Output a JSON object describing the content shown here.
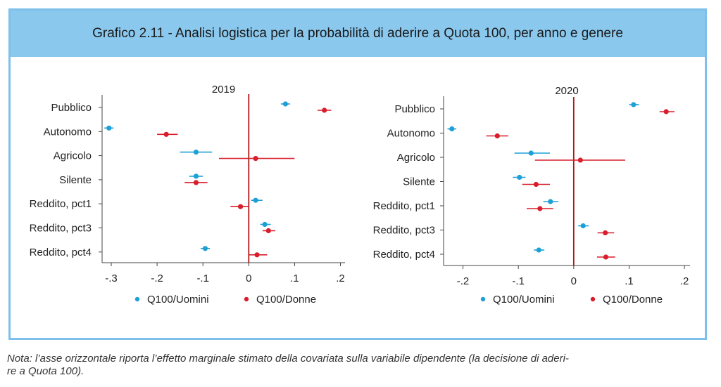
{
  "title": "Grafico 2.11 - Analisi logistica per la probabilità di aderire a Quota 100, per anno e genere",
  "note_line1": "Nota: l’asse orizzontale riporta l’effetto marginale stimato della covariata sulla variabile dipendente (la decisione di aderi-",
  "note_line2": "re a Quota 100).",
  "colors": {
    "men": "#1ca0d6",
    "women": "#d81e2c",
    "zero_line": "#b01818",
    "header": "#8ac8ee"
  },
  "chart_data": [
    {
      "type": "scatter",
      "title": "2019",
      "categories": [
        "Pubblico",
        "Autonomo",
        "Agricolo",
        "Silente",
        "Reddito, pct1",
        "Reddito, pct3",
        "Reddito, pct4"
      ],
      "xticks": [
        -0.3,
        -0.2,
        -0.1,
        0,
        0.1,
        0.2
      ],
      "xtick_labels": [
        "-.3",
        "-.2",
        "-.1",
        "0",
        ".1",
        ".2"
      ],
      "xlim": [
        -0.32,
        0.21
      ],
      "series": [
        {
          "name": "Q100/Uomini",
          "values": [
            0.08,
            -0.305,
            -0.115,
            -0.115,
            0.015,
            0.035,
            -0.095
          ],
          "ci_low": [
            0.07,
            -0.315,
            -0.15,
            -0.13,
            0.005,
            0.025,
            -0.105
          ],
          "ci_high": [
            0.09,
            -0.295,
            -0.08,
            -0.1,
            0.03,
            0.048,
            -0.085
          ]
        },
        {
          "name": "Q100/Donne",
          "values": [
            0.165,
            -0.18,
            0.015,
            -0.115,
            -0.018,
            0.043,
            0.018
          ],
          "ci_low": [
            0.15,
            -0.2,
            -0.065,
            -0.14,
            -0.04,
            0.03,
            0.0
          ],
          "ci_high": [
            0.18,
            -0.155,
            0.1,
            -0.09,
            0.0,
            0.058,
            0.04
          ]
        }
      ]
    },
    {
      "type": "scatter",
      "title": "2020",
      "categories": [
        "Pubblico",
        "Autonomo",
        "Agricolo",
        "Silente",
        "Reddito, pct1",
        "Reddito, pct3",
        "Reddito, pct4"
      ],
      "xticks": [
        -0.2,
        -0.1,
        0,
        0.1,
        0.2
      ],
      "xtick_labels": [
        "-.2",
        "-.1",
        "0",
        ".1",
        ".2"
      ],
      "xlim": [
        -0.235,
        0.21
      ],
      "series": [
        {
          "name": "Q100/Uomini",
          "values": [
            0.108,
            -0.22,
            -0.077,
            -0.098,
            -0.042,
            0.017,
            -0.063
          ],
          "ci_low": [
            0.1,
            -0.228,
            -0.107,
            -0.11,
            -0.055,
            0.008,
            -0.072
          ],
          "ci_high": [
            0.118,
            -0.212,
            -0.043,
            -0.087,
            -0.028,
            0.027,
            -0.053
          ]
        },
        {
          "name": "Q100/Donne",
          "values": [
            0.167,
            -0.138,
            0.012,
            -0.068,
            -0.061,
            0.057,
            0.058
          ],
          "ci_low": [
            0.155,
            -0.158,
            -0.07,
            -0.093,
            -0.085,
            0.043,
            0.042
          ],
          "ci_high": [
            0.182,
            -0.118,
            0.093,
            -0.043,
            -0.037,
            0.073,
            0.075
          ]
        }
      ]
    }
  ]
}
